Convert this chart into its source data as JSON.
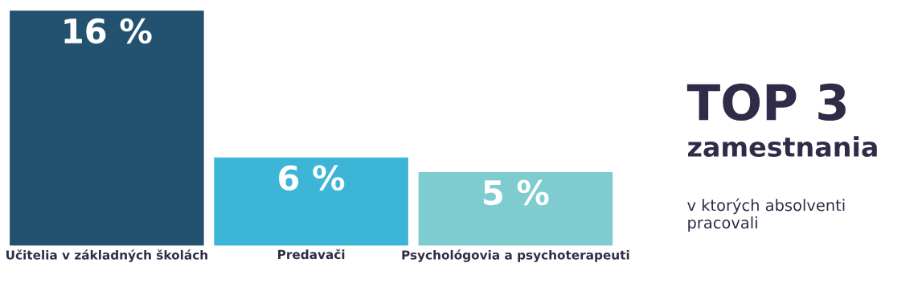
{
  "chart_data": {
    "type": "bar",
    "title": "TOP 3",
    "subtitle": "zamestnania",
    "annotations": [
      "v ktorých absolventi pracovali"
    ],
    "categories": [
      "Učitelia v základných školách",
      "Predavači",
      "Psychológovia a psychoterapeuti"
    ],
    "values": [
      16,
      6,
      5
    ],
    "value_labels": [
      "16 %",
      "6 %",
      "5 %"
    ],
    "colors": [
      "#22526f",
      "#3db5d6",
      "#7ecbd0"
    ],
    "grid": false,
    "legend": false
  }
}
